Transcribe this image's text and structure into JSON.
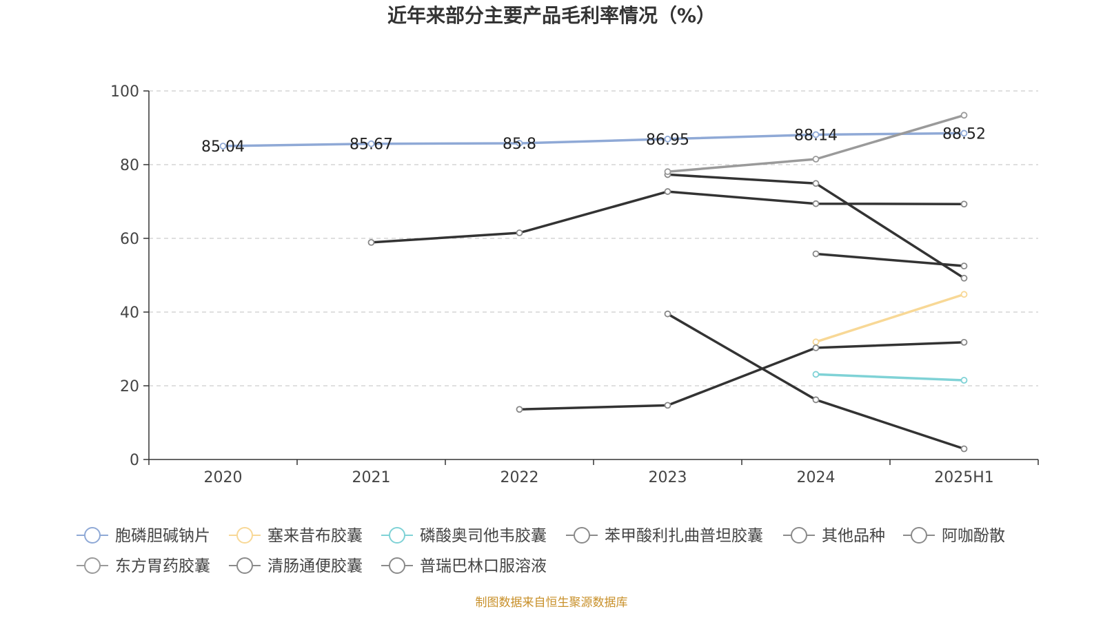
{
  "chart_data": {
    "type": "line",
    "title": "近年来部分主要产品毛利率情况（%）",
    "source_note": "制图数据来自恒生聚源数据库",
    "categories": [
      "2020",
      "2021",
      "2022",
      "2023",
      "2024",
      "2025H1"
    ],
    "ylim": [
      0,
      100
    ],
    "yticks": [
      0,
      20,
      40,
      60,
      80,
      100
    ],
    "grid": true,
    "legend_position": "bottom",
    "series": [
      {
        "name": "胞磷胆碱钠片",
        "color": "#8fa9d6",
        "values": [
          85.04,
          85.67,
          85.8,
          86.95,
          88.14,
          88.52
        ],
        "labels": [
          "85.04",
          "85.67",
          "85.8",
          "86.95",
          "88.14",
          "88.52"
        ]
      },
      {
        "name": "塞来昔布胶囊",
        "color": "#f8d896",
        "values": [
          null,
          null,
          null,
          null,
          31.9,
          44.8
        ]
      },
      {
        "name": "磷酸奥司他韦胶囊",
        "color": "#7fd2d6",
        "values": [
          null,
          null,
          null,
          null,
          23.1,
          21.5
        ]
      },
      {
        "name": "苯甲酸利扎曲普坦胶囊",
        "color": "#333333",
        "values": [
          null,
          null,
          null,
          39.5,
          16.2,
          2.9
        ]
      },
      {
        "name": "其他品种",
        "color": "#333333",
        "values": [
          null,
          58.9,
          61.5,
          72.7,
          69.4,
          69.3
        ]
      },
      {
        "name": "阿咖酚散",
        "color": "#333333",
        "values": [
          null,
          null,
          null,
          77.3,
          74.9,
          49.2
        ]
      },
      {
        "name": "东方胃药胶囊",
        "color": "#9a9a9a",
        "values": [
          null,
          null,
          null,
          78.1,
          81.5,
          93.4
        ]
      },
      {
        "name": "清肠通便胶囊",
        "color": "#333333",
        "values": [
          null,
          null,
          13.6,
          14.7,
          30.3,
          31.8
        ]
      },
      {
        "name": "普瑞巴林口服溶液",
        "color": "#333333",
        "values": [
          null,
          null,
          null,
          null,
          55.8,
          52.5
        ]
      }
    ]
  }
}
